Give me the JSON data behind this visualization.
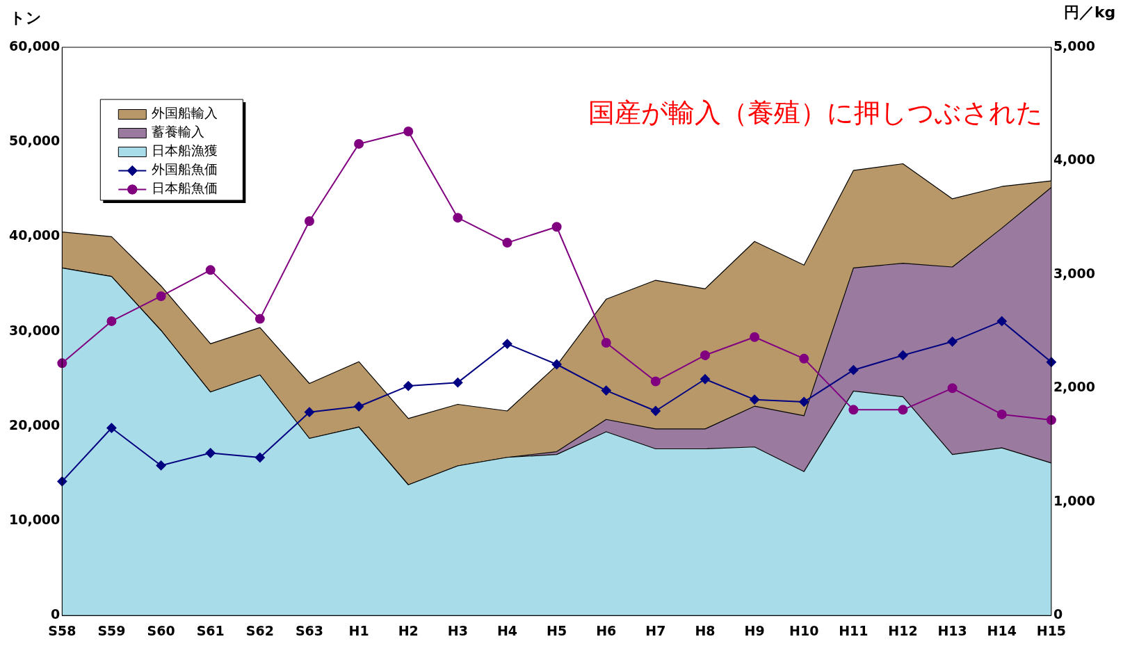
{
  "chart_data": {
    "type": "area",
    "stacked": true,
    "categories": [
      "S58",
      "S59",
      "S60",
      "S61",
      "S62",
      "S63",
      "H1",
      "H2",
      "H3",
      "H4",
      "H5",
      "H6",
      "H7",
      "H8",
      "H9",
      "H10",
      "H11",
      "H12",
      "H13",
      "H14",
      "H15"
    ],
    "series": [
      {
        "name": "日本船漁獲",
        "color": "#a8dce8",
        "values": [
          36700,
          35800,
          30100,
          23600,
          25400,
          18700,
          19900,
          13800,
          15800,
          16700,
          17000,
          19400,
          17600,
          17600,
          17800,
          15200,
          23700,
          23100,
          17000,
          17700,
          16100
        ]
      },
      {
        "name": "蓄養輸入",
        "color": "#9a7a9e",
        "values": [
          0,
          0,
          0,
          0,
          0,
          0,
          0,
          0,
          0,
          0,
          300,
          1300,
          2100,
          2100,
          4300,
          5900,
          13000,
          14100,
          19800,
          23200,
          29100
        ]
      },
      {
        "name": "外国船輸入",
        "color": "#b89868",
        "values": [
          3800,
          4200,
          4700,
          5100,
          5000,
          5800,
          6900,
          7000,
          6500,
          4900,
          9100,
          12700,
          15700,
          14800,
          17400,
          15900,
          10300,
          10500,
          7200,
          4400,
          700
        ]
      },
      {
        "name": "外国船魚価",
        "type": "line",
        "axis": "y2",
        "color": "#000080",
        "marker": "diamond",
        "values": [
          1180,
          1650,
          1320,
          1430,
          1390,
          1790,
          1840,
          2020,
          2050,
          2390,
          2210,
          1980,
          1800,
          2080,
          1900,
          1880,
          2160,
          2290,
          2410,
          2590,
          2230
        ]
      },
      {
        "name": "日本船魚価",
        "type": "line",
        "axis": "y2",
        "color": "#800080",
        "marker": "circle",
        "values": [
          2220,
          2590,
          2810,
          3040,
          2610,
          3470,
          4150,
          4260,
          3500,
          3280,
          3420,
          2400,
          2060,
          2290,
          2450,
          2260,
          1810,
          1810,
          2000,
          1770,
          1720
        ]
      }
    ],
    "ylabel": "トン",
    "y2label": "円／kg",
    "ylim": [
      0,
      60000
    ],
    "yticks": [
      0,
      {
        "value": 10000,
        "label": "10,000"
      },
      {
        "value": 20000,
        "label": "20,000"
      },
      {
        "value": 30000,
        "label": "30,000"
      },
      {
        "value": 40000,
        "label": "40,000"
      },
      {
        "value": 50000,
        "label": "50,000"
      },
      {
        "value": 60000,
        "label": "60,000"
      }
    ],
    "y2lim": [
      0,
      5000
    ],
    "y2ticks": [
      0,
      {
        "value": 1000,
        "label": "1,000"
      },
      {
        "value": 2000,
        "label": "2,000"
      },
      {
        "value": 3000,
        "label": "3,000"
      },
      {
        "value": 4000,
        "label": "4,000"
      },
      {
        "value": 5000,
        "label": "5,000"
      }
    ],
    "annotations": [
      "国産が輸入（養殖）に押しつぶされた"
    ],
    "legend": "top left",
    "grid": false,
    "line_style": "solid"
  }
}
